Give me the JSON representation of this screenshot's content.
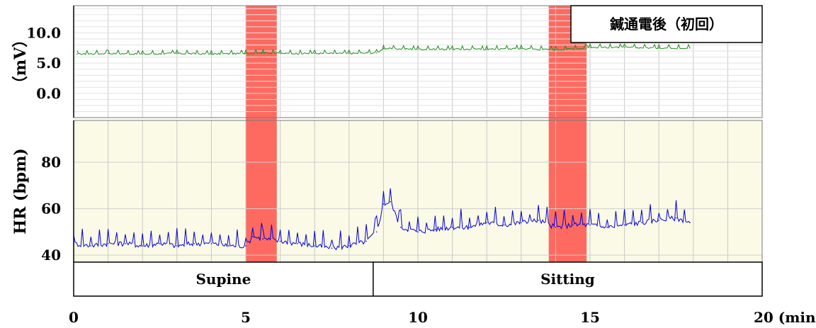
{
  "chart_data": {
    "type": "line",
    "annotation": "鍼通電後（初回）",
    "x_axis": {
      "range": [
        0,
        20
      ],
      "ticks": [
        "0",
        "5",
        "10",
        "15",
        "20 (min.)"
      ],
      "grid_step": 1
    },
    "highlight_bands": [
      {
        "x_start": 5.0,
        "x_end": 5.9,
        "color": "#ff6a60"
      },
      {
        "x_start": 13.8,
        "x_end": 14.9,
        "color": "#ff6a60"
      }
    ],
    "phases": [
      {
        "label": "Supine",
        "x_start": 0,
        "x_end": 8.7
      },
      {
        "label": "Sitting",
        "x_start": 8.7,
        "x_end": 20
      }
    ],
    "panels": [
      {
        "name": "ecg",
        "ylabel": "（mV）",
        "ylim": [
          -4,
          14.5
        ],
        "yticks": [
          10.0,
          5.0,
          0.0
        ],
        "ytick_labels": [
          "10.0",
          "5.0",
          "0.0"
        ],
        "background": "#ffffff",
        "series": [
          {
            "color": "#1e8c1e",
            "x": [
              0.1,
              1,
              2,
              3,
              4,
              5,
              5.5,
              6,
              7,
              8,
              8.8,
              9.0,
              10,
              11,
              12,
              13,
              14,
              14.9,
              15,
              16,
              17,
              17.9
            ],
            "y": [
              6.5,
              6.6,
              6.5,
              6.6,
              6.5,
              6.6,
              6.7,
              6.6,
              6.6,
              6.6,
              6.7,
              7.4,
              7.3,
              7.3,
              7.3,
              7.4,
              7.2,
              7.5,
              7.6,
              7.6,
              7.5,
              7.5
            ]
          }
        ]
      },
      {
        "name": "heart-rate",
        "ylabel": "HR (bpm)",
        "ylim": [
          37,
          98
        ],
        "yticks": [
          80,
          60,
          40
        ],
        "ytick_labels": [
          "80",
          "60",
          "40"
        ],
        "background": "#fafae6",
        "series": [
          {
            "color": "#0000e0",
            "x": [
              0,
              0.5,
              1,
              1.5,
              2,
              2.5,
              3,
              3.5,
              4,
              4.5,
              5,
              5.2,
              5.5,
              6,
              6.5,
              7,
              7.5,
              8,
              8.5,
              8.8,
              9.0,
              9.2,
              9.5,
              10,
              10.5,
              11,
              11.5,
              12,
              12.5,
              13,
              13.5,
              14,
              14.5,
              15,
              15.5,
              16,
              16.5,
              17,
              17.5,
              17.9
            ],
            "y": [
              45,
              44,
              45,
              45,
              44,
              45,
              44,
              45,
              45,
              44,
              44,
              48,
              47,
              46,
              45,
              44,
              43,
              44,
              46,
              50,
              62,
              63,
              52,
              50,
              51,
              52,
              52,
              54,
              53,
              54,
              55,
              52,
              53,
              53,
              52,
              53,
              54,
              55,
              56,
              54
            ]
          }
        ]
      }
    ]
  }
}
